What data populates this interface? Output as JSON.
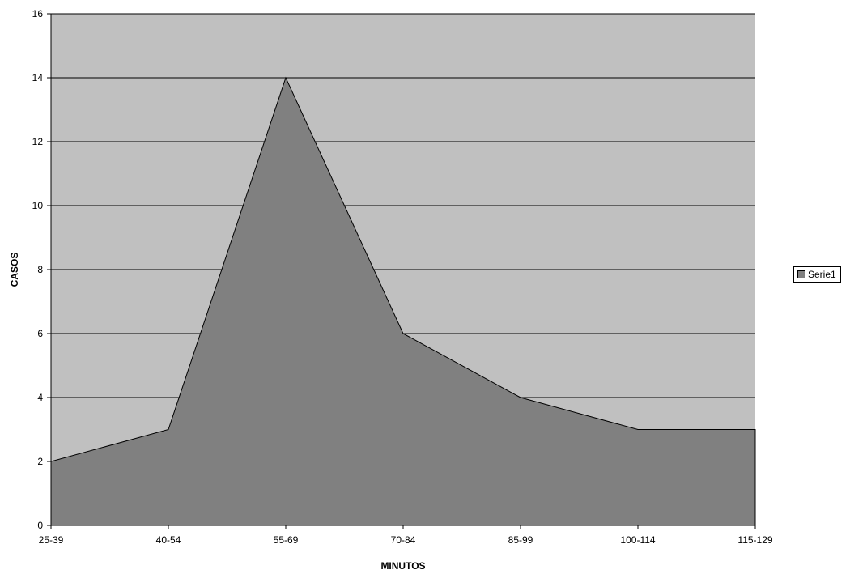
{
  "chart_data": {
    "type": "area",
    "categories": [
      "25-39",
      "40-54",
      "55-69",
      "70-84",
      "85-99",
      "100-114",
      "115-129"
    ],
    "series": [
      {
        "name": "Serie1",
        "values": [
          2,
          3,
          14,
          6,
          4,
          3,
          3
        ]
      }
    ],
    "xlabel": "MINUTOS",
    "ylabel": "CASOS",
    "ylim": [
      0,
      16
    ],
    "yticks": [
      0,
      2,
      4,
      6,
      8,
      10,
      12,
      14,
      16
    ],
    "grid": true,
    "legend_position": "right",
    "colors": {
      "plot_background": "#c0c0c0",
      "area_fill": "#808080",
      "line": "#000000",
      "gridline": "#000000"
    }
  }
}
